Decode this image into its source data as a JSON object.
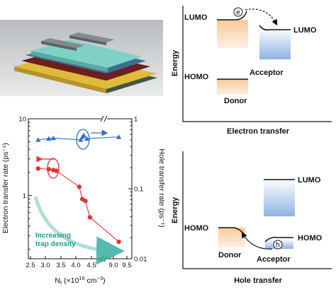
{
  "device_image": {
    "icon": "layered-device-illustration"
  },
  "electron_transfer_diagram": {
    "lumo_left": "LUMO",
    "lumo_right": "LUMO",
    "homo_left": "HOMO",
    "energy_label": "Energy",
    "donor_label": "Donor",
    "acceptor_label": "Acceptor",
    "x_label": "Electron transfer",
    "carrier_symbol": "e",
    "colors": {
      "donor": "#f7c99a",
      "acceptor": "#8fb4e3"
    }
  },
  "hole_transfer_diagram": {
    "lumo_label": "LUMO",
    "homo_left": "HOMO",
    "homo_right": "HOMO",
    "energy_label": "Energy",
    "donor_label": "Donor",
    "acceptor_label": "Acceptor",
    "x_label": "Hole transfer",
    "carrier_symbol": "h"
  },
  "chart_data": {
    "type": "scatter",
    "xlabel_main": "N",
    "xlabel_sub": "t",
    "xlabel_unit_pre": " (×10",
    "xlabel_exp": "16",
    "xlabel_unit_post": " cm",
    "xlabel_exp2": "−3",
    "xlabel_close": ")",
    "ylabel_left": "Electron transfer rate (ps⁻¹)",
    "ylabel_right": "Hole transfer rate (ps⁻¹)",
    "x_scale": "broken-linear",
    "x_ticks": [
      "2.5",
      "3.0",
      "3.5",
      "4.0",
      "4.5",
      "9.0",
      "9.5"
    ],
    "y_left_scale": "log",
    "y_left_ticks": [
      "10",
      "1"
    ],
    "y_left_range": [
      0.15,
      10
    ],
    "y_right_scale": "log",
    "y_right_ticks": [
      "1",
      "0.1",
      "0.01"
    ],
    "y_right_range": [
      0.01,
      1
    ],
    "annotation": "Increasing\ntrap density",
    "series": [
      {
        "axis": "right",
        "marker": "triangle",
        "color": "#2f6fd1",
        "points": [
          [
            2.75,
            0.5
          ],
          [
            3.1,
            0.52
          ],
          [
            3.25,
            0.53
          ],
          [
            4.15,
            0.5
          ],
          [
            4.2,
            0.55
          ],
          [
            4.25,
            0.58
          ],
          [
            4.35,
            0.52
          ],
          [
            9.2,
            0.55
          ]
        ]
      },
      {
        "axis": "left",
        "marker": "circle",
        "color": "#e03535",
        "points": [
          [
            2.75,
            2.25
          ],
          [
            3.1,
            2.2
          ],
          [
            3.25,
            2.15
          ],
          [
            3.35,
            2.1
          ],
          [
            4.1,
            1.3
          ],
          [
            4.2,
            0.9
          ],
          [
            4.3,
            0.85
          ],
          [
            4.45,
            0.52
          ],
          [
            9.2,
            0.25
          ]
        ]
      }
    ]
  }
}
